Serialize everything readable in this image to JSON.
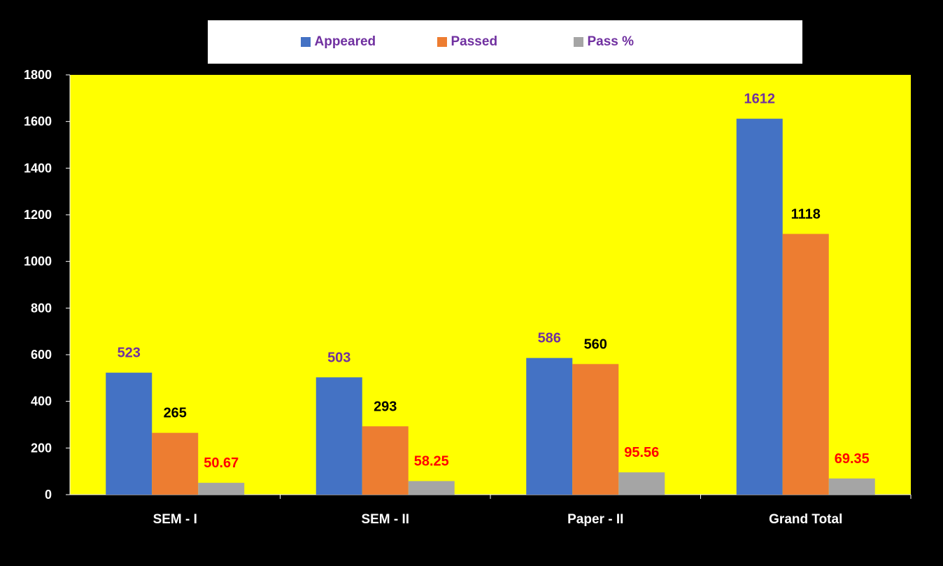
{
  "chart_data": {
    "type": "bar",
    "categories": [
      "SEM - I",
      "SEM - II",
      "Paper - II",
      "Grand Total"
    ],
    "series": [
      {
        "name": "Appeared",
        "values": [
          523,
          503,
          586,
          1612
        ],
        "color": "#4472C4",
        "label_color": "#7030A0"
      },
      {
        "name": "Passed",
        "values": [
          265,
          293,
          560,
          1118
        ],
        "color": "#ED7D31",
        "label_color": "#000000"
      },
      {
        "name": "Pass %",
        "values": [
          50.67,
          58.25,
          95.56,
          69.35
        ],
        "color": "#A5A5A5",
        "label_color": "#FF0000"
      }
    ],
    "value_labels": [
      [
        "523",
        "503",
        "586",
        "1612"
      ],
      [
        "265",
        "293",
        "560",
        "1118"
      ],
      [
        "50.67",
        "58.25",
        "95.56",
        "69.35"
      ]
    ],
    "ylim": [
      0,
      1800
    ],
    "yticks": [
      "0",
      "200",
      "400",
      "600",
      "800",
      "1000",
      "1200",
      "1400",
      "1600",
      "1800"
    ],
    "legend_position": "top",
    "grid": false,
    "plot_background": "#FFFF00",
    "page_background": "#000000",
    "axis_label_color": "#FFFFFF"
  }
}
